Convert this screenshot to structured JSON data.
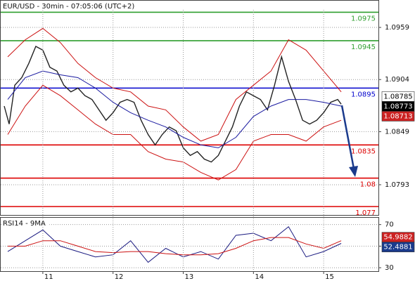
{
  "chart_data": [
    {
      "type": "line",
      "title": "EUR/USD - 30min - 07:05:06 (UTC+2)",
      "xlim": [
        10.4,
        15.78
      ],
      "xticks": [
        11,
        12,
        13,
        14,
        15
      ],
      "ylim": [
        1.07611,
        1.09872
      ],
      "yticks": [
        1.0959,
        1.0904,
        1.0849,
        1.0793
      ],
      "grid": true,
      "series": [
        {
          "color": "#222222",
          "x": [
            10.45,
            10.52,
            10.6,
            10.7,
            10.8,
            10.9,
            11.0,
            11.1,
            11.2,
            11.3,
            11.4,
            11.5,
            11.6,
            11.7,
            11.8,
            11.9,
            12.0,
            12.1,
            12.2,
            12.3,
            12.4,
            12.5,
            12.6,
            12.7,
            12.8,
            12.9,
            13.0,
            13.1,
            13.2,
            13.3,
            13.4,
            13.5,
            13.6,
            13.7,
            13.8,
            13.9,
            14.0,
            14.1,
            14.2,
            14.3,
            14.4,
            14.5,
            14.6,
            14.7,
            14.8,
            14.9,
            15.0,
            15.1,
            15.2,
            15.25
          ],
          "values": [
            1.0876,
            1.0857,
            1.0898,
            1.0906,
            1.0921,
            1.0939,
            1.0935,
            1.0917,
            1.0913,
            1.0898,
            1.0891,
            1.0895,
            1.0887,
            1.0883,
            1.0872,
            1.0861,
            1.0869,
            1.088,
            1.0883,
            1.088,
            1.0861,
            1.0846,
            1.0835,
            1.0846,
            1.0854,
            1.085,
            1.0832,
            1.0824,
            1.0828,
            1.082,
            1.0817,
            1.0824,
            1.0839,
            1.0854,
            1.0876,
            1.0891,
            1.0887,
            1.0883,
            1.0872,
            1.0898,
            1.0928,
            1.0902,
            1.0883,
            1.0861,
            1.0857,
            1.0861,
            1.0869,
            1.088,
            1.0883,
            1.0878
          ]
        },
        {
          "color": "#cc1111",
          "x": [
            10.5,
            10.75,
            11.0,
            11.25,
            11.5,
            11.75,
            12.0,
            12.25,
            12.5,
            12.75,
            13.0,
            13.25,
            13.5,
            13.75,
            14.0,
            14.25,
            14.5,
            14.75,
            15.0,
            15.25
          ],
          "values": [
            1.0928,
            1.0946,
            1.0958,
            1.0943,
            1.0921,
            1.0906,
            1.0895,
            1.0891,
            1.0876,
            1.0872,
            1.0854,
            1.0839,
            1.0846,
            1.0883,
            1.0898,
            1.0913,
            1.0946,
            1.0935,
            1.0913,
            1.0891
          ]
        },
        {
          "color": "#cc1111",
          "x": [
            10.5,
            10.75,
            11.0,
            11.25,
            11.5,
            11.75,
            12.0,
            12.25,
            12.5,
            12.75,
            13.0,
            13.25,
            13.5,
            13.75,
            14.0,
            14.25,
            14.5,
            14.75,
            15.0,
            15.25
          ],
          "values": [
            1.0846,
            1.0876,
            1.0898,
            1.0887,
            1.0872,
            1.0857,
            1.0846,
            1.0846,
            1.0828,
            1.082,
            1.0817,
            1.0806,
            1.0798,
            1.0809,
            1.0839,
            1.0846,
            1.0846,
            1.0839,
            1.0854,
            1.0861
          ]
        },
        {
          "color": "#1a1aa0",
          "x": [
            10.5,
            10.75,
            11.0,
            11.25,
            11.5,
            11.75,
            12.0,
            12.25,
            12.5,
            12.75,
            13.0,
            13.25,
            13.5,
            13.75,
            14.0,
            14.25,
            14.5,
            14.75,
            15.0,
            15.25
          ],
          "values": [
            1.0883,
            1.0906,
            1.0913,
            1.0909,
            1.0906,
            1.0895,
            1.088,
            1.0869,
            1.0861,
            1.0854,
            1.0843,
            1.0835,
            1.0832,
            1.0843,
            1.0865,
            1.0876,
            1.0883,
            1.0883,
            1.088,
            1.0876
          ]
        }
      ],
      "levels": [
        {
          "value": 1.0975,
          "color": "#2e9e2e"
        },
        {
          "value": 1.0945,
          "color": "#2e9e2e"
        },
        {
          "value": 1.0895,
          "color": "#0000cc"
        },
        {
          "value": 1.0835,
          "color": "#dd0000"
        },
        {
          "value": 1.08,
          "color": "#dd0000"
        },
        {
          "value": 1.077,
          "color": "#dd0000"
        }
      ],
      "price_labels": [
        {
          "value": 1.08785,
          "color": "#ffffff",
          "text_color": "#000000"
        },
        {
          "value": 1.08773,
          "color": "#000000",
          "text_color": "#ffffff"
        },
        {
          "value": 1.08713,
          "color": "#cc2222",
          "text_color": "#ffffff"
        }
      ]
    },
    {
      "type": "line",
      "title": "RSI14 - 9MA",
      "xlim": [
        10.4,
        15.78
      ],
      "ylim": [
        26.8,
        76.3
      ],
      "yticks": [
        30,
        50,
        70
      ],
      "grid": true,
      "series": [
        {
          "color": "#1a1a80",
          "x": [
            10.5,
            10.75,
            11.0,
            11.25,
            11.5,
            11.75,
            12.0,
            12.25,
            12.5,
            12.75,
            13.0,
            13.25,
            13.5,
            13.75,
            14.0,
            14.25,
            14.5,
            14.75,
            15.0,
            15.25
          ],
          "values": [
            45,
            55,
            65,
            50,
            45,
            40,
            42,
            55,
            35,
            48,
            40,
            45,
            38,
            60,
            62,
            55,
            68,
            40,
            45,
            52.5
          ]
        },
        {
          "color": "#cc1111",
          "x": [
            10.5,
            10.75,
            11.0,
            11.25,
            11.5,
            11.75,
            12.0,
            12.25,
            12.5,
            12.75,
            13.0,
            13.25,
            13.5,
            13.75,
            14.0,
            14.25,
            14.5,
            14.75,
            15.0,
            15.25
          ],
          "values": [
            50,
            50,
            55,
            55,
            50,
            45,
            44,
            45,
            45,
            43,
            42,
            42,
            43,
            48,
            55,
            58,
            58,
            52,
            48,
            55
          ]
        }
      ],
      "price_labels": [
        {
          "value": 54.9882,
          "color": "#cc2222",
          "text_color": "#ffffff"
        },
        {
          "value": 52.4881,
          "color": "#1a3a8c",
          "text_color": "#ffffff"
        }
      ]
    }
  ]
}
